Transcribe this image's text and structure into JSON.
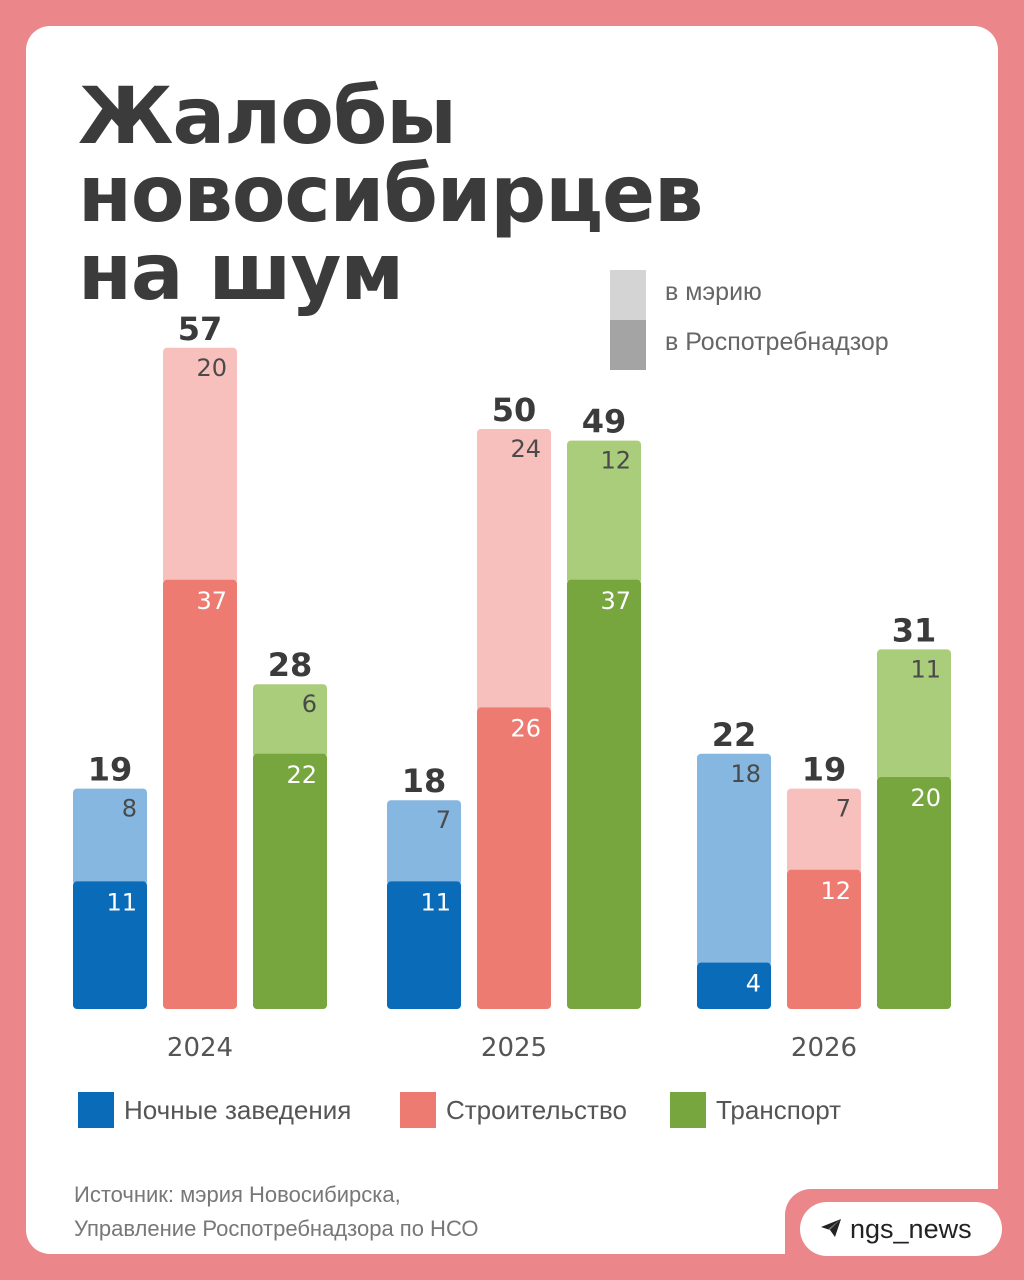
{
  "title_lines": [
    "Жалобы",
    "новосибирцев",
    "на шум"
  ],
  "shade_legend": {
    "light": "в мэрию",
    "dark": "в Роспотребнадзор"
  },
  "colors": {
    "page_bg": "#eb868a",
    "card_bg": "#ffffff",
    "text_dark": "#3b3b3b",
    "shade_light": "#d4d4d4",
    "shade_dark": "#a4a4a4",
    "night_dark": "#0a6bb8",
    "night_light": "#85b7e0",
    "construction_dark": "#ee7b72",
    "construction_light": "#f8c0bd",
    "transport_dark": "#77a53e",
    "transport_light": "#a9cd7a"
  },
  "chart_data": {
    "type": "bar",
    "stacked": true,
    "categories": [
      "2024",
      "2025",
      "2026"
    ],
    "series": [
      {
        "name": "Ночные заведения",
        "rospotrebnadzor": [
          11,
          11,
          4
        ],
        "meria": [
          8,
          7,
          18
        ],
        "totals": [
          19,
          18,
          22
        ]
      },
      {
        "name": "Строительство",
        "rospotrebnadzor": [
          37,
          26,
          12
        ],
        "meria": [
          20,
          24,
          7
        ],
        "totals": [
          57,
          50,
          19
        ]
      },
      {
        "name": "Транспорт",
        "rospotrebnadzor": [
          22,
          37,
          20
        ],
        "meria": [
          6,
          12,
          11
        ],
        "totals": [
          28,
          49,
          31
        ]
      }
    ],
    "ylim": [
      0,
      57
    ],
    "grid": false,
    "legend_position": "bottom"
  },
  "source_lines": [
    "Источник: мэрия Новосибирска,",
    "Управление Роспотребнадзора по НСО"
  ],
  "brand": {
    "icon": "telegram-plane-icon",
    "label": "ngs_news"
  }
}
